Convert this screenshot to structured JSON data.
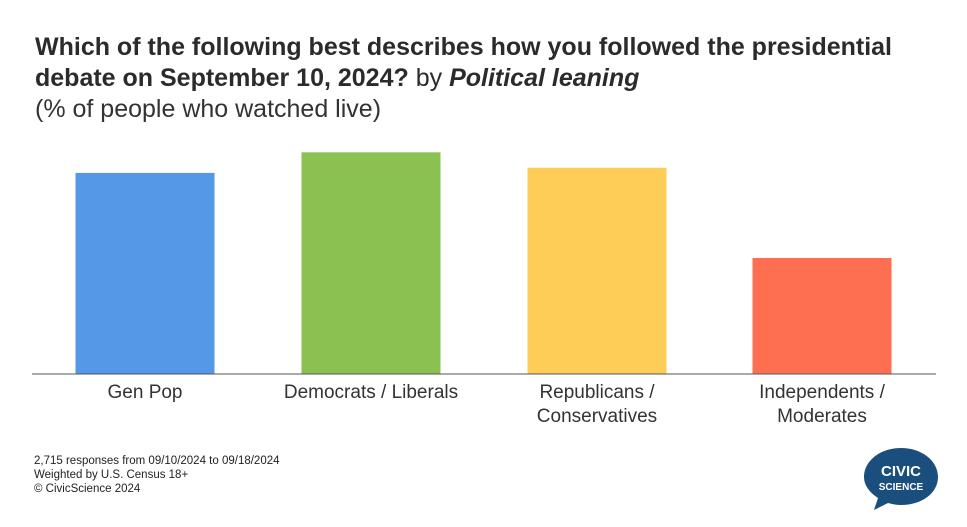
{
  "title": {
    "main": "Which of the following best describes how you followed the presidential debate on September 10, 2024?",
    "by": "by",
    "grouping": "Political leaning",
    "subtitle": "(% of people who watched live)"
  },
  "chart_data": {
    "type": "bar",
    "categories": [
      "Gen Pop",
      "Democrats / Liberals",
      "Republicans / Conservatives",
      "Independents / Moderates"
    ],
    "category_lines": [
      [
        "Gen Pop"
      ],
      [
        "Democrats / Liberals"
      ],
      [
        "Republicans /",
        "Conservatives"
      ],
      [
        "Independents /",
        "Moderates"
      ]
    ],
    "values": [
      39,
      43,
      40,
      22.5
    ],
    "ylim": [
      0,
      45
    ],
    "colors": [
      "#5499e8",
      "#8bc150",
      "#fecd58",
      "#fe6e50"
    ],
    "grid": false,
    "legend": "none"
  },
  "footnotes": [
    "2,715 responses from 09/10/2024 to 09/18/2024",
    "Weighted by U.S. Census 18+",
    "© CivicScience 2024"
  ],
  "logo": {
    "line1": "CIVIC",
    "line2": "SCIENCE",
    "color": "#1a4e7c"
  }
}
